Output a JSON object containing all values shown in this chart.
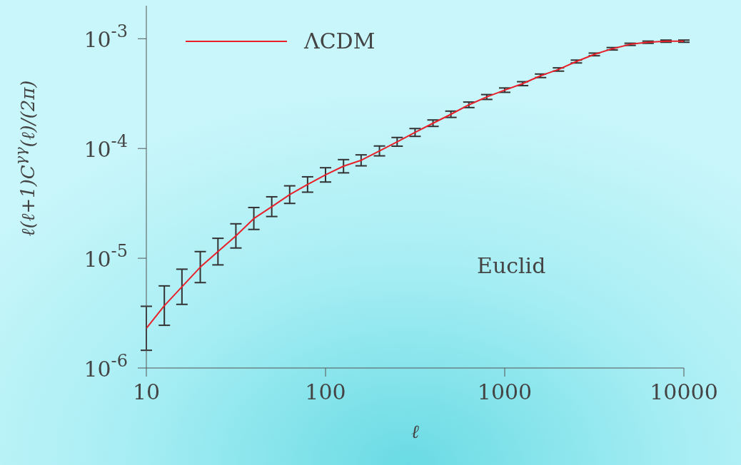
{
  "chart_data": {
    "type": "line",
    "xlabel": "ℓ",
    "ylabel": "ℓ(ℓ+1)C$^{γγ}$(ℓ)/(2π)",
    "log": "xy",
    "legend": "top left",
    "marker": "none",
    "line_style": "solid",
    "grid": false,
    "x": [
      10,
      12.6,
      15.8,
      20,
      25.1,
      31.6,
      39.8,
      50.1,
      63.1,
      79.4,
      100,
      126,
      158,
      200,
      251,
      316,
      398,
      501,
      631,
      794,
      1000,
      1259,
      1585,
      1995,
      2512,
      3162,
      3981,
      5012,
      6310,
      7943,
      10000
    ],
    "xlim": [
      10,
      10000
    ],
    "xticks": [
      10,
      100,
      1000,
      10000
    ],
    "ylim": [
      1e-06,
      0.002
    ],
    "yticks": [
      {
        "value": 0.001,
        "label": "10$^{-3}$"
      },
      {
        "value": 0.0001,
        "label": "10$^{-4}$"
      },
      {
        "value": 1e-05,
        "label": "10$^{-5}$"
      },
      {
        "value": 1e-06,
        "label": "10$^{-6}$"
      }
    ],
    "series": [
      {
        "name": "ΛCDM",
        "color": "#e8202a",
        "values": [
          2.3e-06,
          3.7e-06,
          5.5e-06,
          8.3e-06,
          1.15e-05,
          1.6e-05,
          2.3e-05,
          2.95e-05,
          3.8e-05,
          4.7e-05,
          5.75e-05,
          6.9e-05,
          7.8e-05,
          9.5e-05,
          0.000115,
          0.00014,
          0.00017,
          0.000205,
          0.00025,
          0.000295,
          0.00034,
          0.00039,
          0.00046,
          0.000525,
          0.00062,
          0.00072,
          0.00081,
          0.00089,
          0.00093,
          0.00095,
          0.00095
        ],
        "errors": [
          [
            1.45e-06,
            3.65e-06
          ],
          [
            2.45e-06,
            5.6e-06
          ],
          [
            3.8e-06,
            7.95e-06
          ],
          [
            6e-06,
            1.15e-05
          ],
          [
            8.7e-06,
            1.52e-05
          ],
          [
            1.24e-05,
            2.06e-05
          ],
          [
            1.83e-05,
            2.9e-05
          ],
          [
            2.4e-05,
            3.63e-05
          ],
          [
            3.16e-05,
            4.57e-05
          ],
          [
            4e-05,
            5.52e-05
          ],
          [
            4.95e-05,
            6.68e-05
          ],
          [
            6e-05,
            7.92e-05
          ],
          [
            6.95e-05,
            8.75e-05
          ],
          [
            8.57e-05,
            0.0001054
          ],
          [
            0.000105,
            0.000126
          ],
          [
            0.000129,
            0.000152
          ],
          [
            0.000159,
            0.000182
          ],
          [
            0.000192,
            0.000219
          ],
          [
            0.000236,
            0.000265
          ],
          [
            0.00028,
            0.00031
          ],
          [
            0.000325,
            0.000356
          ],
          [
            0.000374,
            0.000406
          ],
          [
            0.000443,
            0.000477
          ],
          [
            0.000507,
            0.000543
          ],
          [
            0.000602,
            0.000639
          ],
          [
            0.0007,
            0.00074
          ],
          [
            0.00079,
            0.000831
          ],
          [
            0.00087,
            0.00091
          ],
          [
            0.000909,
            0.000951
          ],
          [
            0.000929,
            0.000972
          ],
          [
            0.000929,
            0.000972
          ]
        ]
      }
    ],
    "annotations": [
      "Euclid"
    ]
  }
}
